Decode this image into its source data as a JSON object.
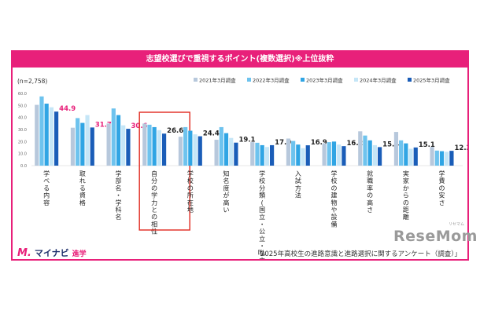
{
  "brand": {
    "logo_mark": "M.",
    "logo_name": "マイナビ",
    "logo_sub": "進学"
  },
  "source": "「2025年高校生の進路意識と進路選択に関するアンケート（調査）」",
  "watermark": {
    "text": "ReseMom",
    "ruby": "リセマム"
  },
  "chart_data": {
    "type": "bar",
    "title": "志望校選びで重視するポイント(複数選択)※上位抜粋",
    "n_label": "(n=2,758)",
    "ylim": [
      0,
      60
    ],
    "yticks": [
      "0.0",
      "10.0",
      "20.0",
      "30.0",
      "40.0",
      "50.0",
      "60.0"
    ],
    "legend_position": "top-right",
    "categories": [
      "学べる内容",
      "取れる資格",
      "学部名・学科名",
      "自分の学力との相性",
      "学校の所在地",
      "知名度が高い",
      "学校分類(国立・公立・私立)",
      "入試方法",
      "学校の建物や設備",
      "就職率の高さ",
      "実家からの距離",
      "学費の安さ"
    ],
    "series": [
      {
        "name": "2021年3月調査",
        "color": "#b7c8dc",
        "values": [
          50.5,
          31.5,
          35.0,
          35.0,
          24.0,
          21.5,
          19.5,
          22.5,
          18.5,
          28.5,
          28.0,
          15.5
        ]
      },
      {
        "name": "2022年3月調査",
        "color": "#6ec3ee",
        "values": [
          57.5,
          39.5,
          47.5,
          34.0,
          32.0,
          32.0,
          19.0,
          20.5,
          19.5,
          25.0,
          21.0,
          12.5
        ]
      },
      {
        "name": "2023年3月調査",
        "color": "#30a5e4",
        "values": [
          51.5,
          35.5,
          42.0,
          32.0,
          29.0,
          27.0,
          17.0,
          17.5,
          20.0,
          21.0,
          18.5,
          12.0
        ]
      },
      {
        "name": "2024年3月調査",
        "color": "#c5e6f7",
        "values": [
          48.5,
          42.0,
          33.5,
          29.5,
          26.0,
          23.0,
          15.5,
          14.5,
          17.5,
          17.0,
          14.0,
          11.5
        ]
      },
      {
        "name": "2025年3月調査",
        "color": "#1a5db8",
        "values": [
          44.9,
          31.7,
          30.6,
          26.6,
          24.4,
          19.1,
          17.0,
          16.9,
          16.2,
          15.4,
          15.1,
          12.3
        ]
      }
    ],
    "value_labels": [
      "44.9",
      "31.7",
      "30.6",
      "26.6",
      "24.4",
      "19.1",
      "17.0",
      "16.9",
      "16.2",
      "15.4",
      "15.1",
      "12.3"
    ],
    "highlight_label_color": "#e8207a",
    "highlighted_red_labels": [
      0,
      1,
      2
    ],
    "highlight_category": 3,
    "highlight_box_color": "#e0281e"
  }
}
